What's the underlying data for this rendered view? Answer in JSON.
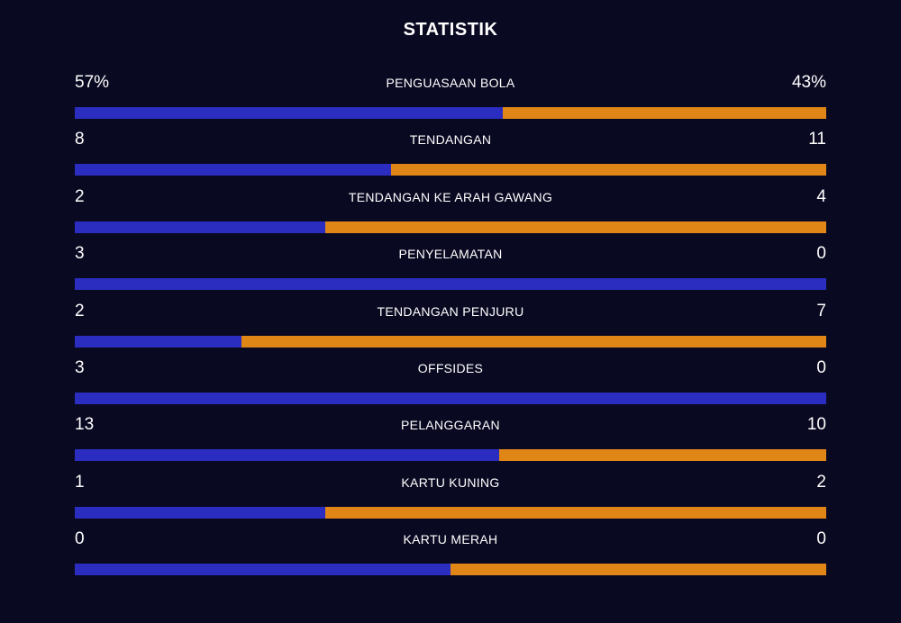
{
  "title": "STATISTIK",
  "colors": {
    "background": "#0a0922",
    "home": "#2a2dbf",
    "away": "#e08617"
  },
  "stats": [
    {
      "label": "PENGUASAAN BOLA",
      "home": "57%",
      "away": "43%",
      "home_share": 0.57
    },
    {
      "label": "TENDANGAN",
      "home": "8",
      "away": "11",
      "home_share": 0.421
    },
    {
      "label": "TENDANGAN KE ARAH GAWANG",
      "home": "2",
      "away": "4",
      "home_share": 0.333
    },
    {
      "label": "PENYELAMATAN",
      "home": "3",
      "away": "0",
      "home_share": 1.0
    },
    {
      "label": "TENDANGAN PENJURU",
      "home": "2",
      "away": "7",
      "home_share": 0.222
    },
    {
      "label": "OFFSIDES",
      "home": "3",
      "away": "0",
      "home_share": 1.0
    },
    {
      "label": "PELANGGARAN",
      "home": "13",
      "away": "10",
      "home_share": 0.565
    },
    {
      "label": "KARTU KUNING",
      "home": "1",
      "away": "2",
      "home_share": 0.333
    },
    {
      "label": "KARTU MERAH",
      "home": "0",
      "away": "0",
      "home_share": 0.5
    }
  ]
}
